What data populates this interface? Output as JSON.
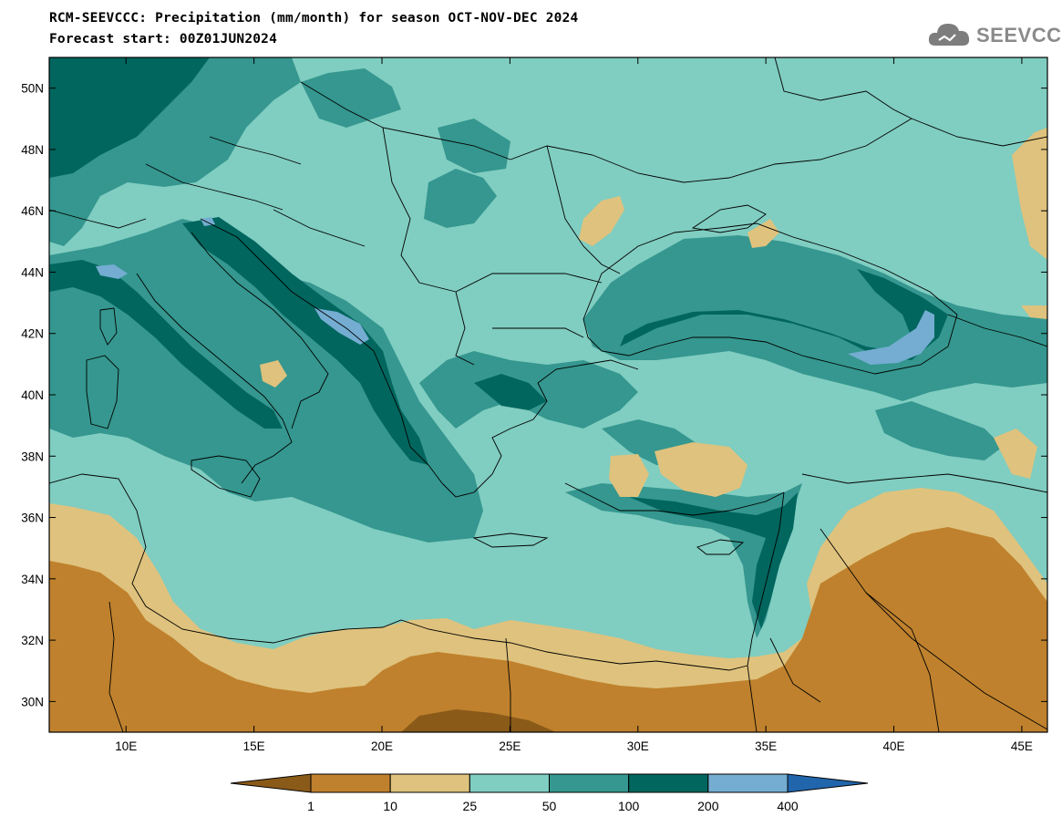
{
  "header": {
    "title_line1": "RCM-SEEVCCC: Precipitation (mm/month) for season OCT-NOV-DEC 2024",
    "title_line2": "Forecast start: 00Z01JUN2024"
  },
  "logo": {
    "text": "SEEVCCC",
    "icon": "cloud-icon"
  },
  "map": {
    "variable": "Precipitation",
    "units": "mm/month",
    "lon_range": [
      7,
      46
    ],
    "lat_range": [
      29,
      51
    ],
    "lon_ticks": [
      "10E",
      "15E",
      "20E",
      "25E",
      "30E",
      "35E",
      "40E",
      "45E"
    ],
    "lat_ticks": [
      "30N",
      "32N",
      "34N",
      "36N",
      "38N",
      "40N",
      "42N",
      "44N",
      "46N",
      "48N",
      "50N"
    ]
  },
  "legend": {
    "levels": [
      "1",
      "10",
      "25",
      "50",
      "100",
      "200",
      "400"
    ],
    "colors": [
      "#8a5a19",
      "#bf812d",
      "#dfc27d",
      "#80cdc1",
      "#35978f",
      "#01665e",
      "#74add1",
      "#2166ac"
    ]
  }
}
